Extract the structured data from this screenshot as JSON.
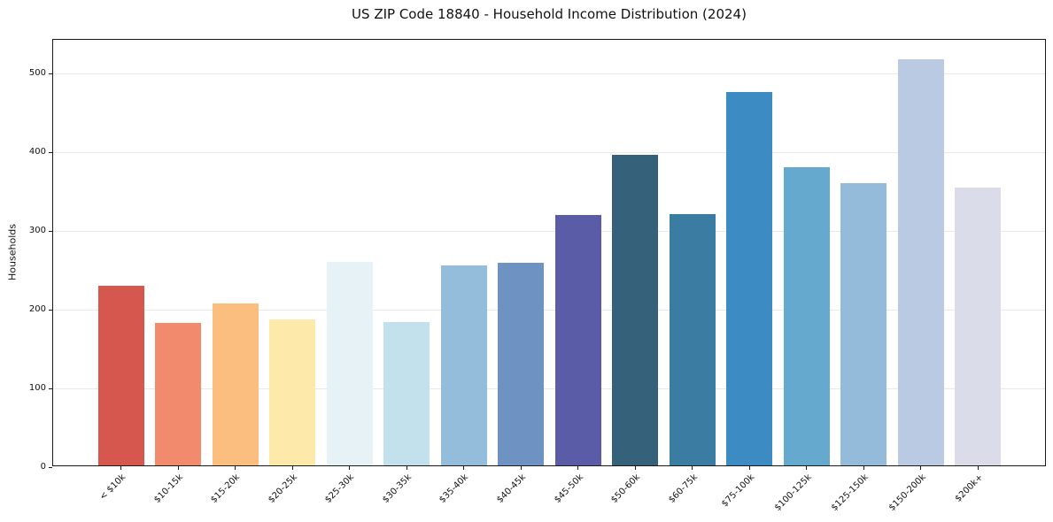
{
  "figure": {
    "background": "#ffffff",
    "text_color": "#111111",
    "gridline_color": "#e9e9e9",
    "spine_color": "#1a1a1a"
  },
  "chart_data": {
    "type": "bar",
    "title": "US ZIP Code 18840 - Household Income Distribution (2024)",
    "xlabel": "",
    "ylabel": "Households",
    "categories": [
      "< $10k",
      "$10-15k",
      "$15-20k",
      "$20-25k",
      "$25-30k",
      "$30-35k",
      "$35-40k",
      "$40-45k",
      "$45-50k",
      "$50-60k",
      "$60-75k",
      "$75-100k",
      "$100-125k",
      "$125-150k",
      "$150-200k",
      "$200k+"
    ],
    "values": [
      228,
      181,
      206,
      186,
      259,
      182,
      254,
      258,
      318,
      395,
      319,
      474,
      379,
      359,
      516,
      353
    ],
    "bar_colors": [
      "#d6574e",
      "#f28a6d",
      "#fcbe7e",
      "#fde9a9",
      "#e6f2f5",
      "#c3e1ed",
      "#94bddc",
      "#6e92c2",
      "#5b5ca7",
      "#35617a",
      "#3b7ca3",
      "#3c8bc2",
      "#66a9ce",
      "#95bbdb",
      "#bacae2",
      "#dadce9"
    ],
    "yticks": [
      0,
      100,
      200,
      300,
      400,
      500
    ],
    "ylim": [
      0,
      543
    ],
    "grid": "horizontal-only",
    "legend": "none",
    "x_tick_rotation_deg": 45
  }
}
